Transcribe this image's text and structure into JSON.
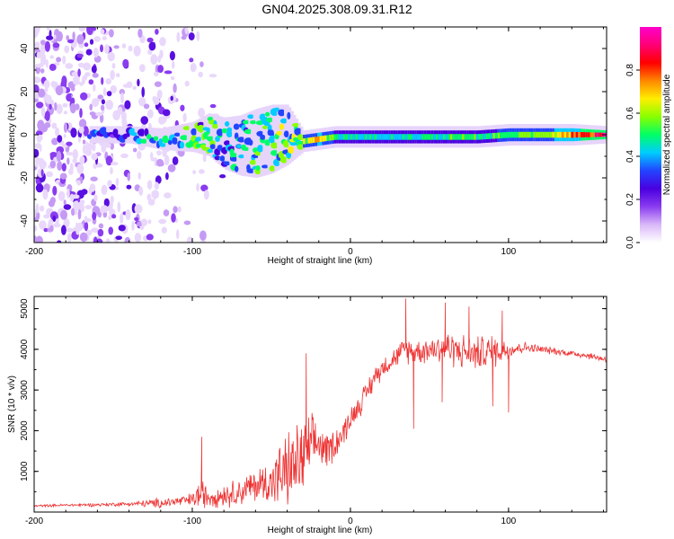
{
  "title": "GN04.2025.308.09.31.R12",
  "chart_data": [
    {
      "type": "heatmap",
      "name": "spectrogram",
      "xlabel": "Height of straight line (km)",
      "ylabel": "Frequency (Hz)",
      "xlim": [
        -200,
        162
      ],
      "ylim": [
        -50,
        50
      ],
      "xticks": [
        "-200",
        "-100",
        "0",
        "100"
      ],
      "xtick_values": [
        -200,
        -100,
        0,
        100
      ],
      "yticks": [
        "-40",
        "-20",
        "0",
        "20",
        "40"
      ],
      "ytick_values": [
        -40,
        -20,
        0,
        20,
        40
      ],
      "colorbar": {
        "label": "Normalized spectral amplitude",
        "range": [
          0,
          1
        ],
        "ticks": [
          "0.0",
          "0.2",
          "0.4",
          "0.6",
          "0.8"
        ],
        "tick_values": [
          0.0,
          0.2,
          0.4,
          0.6,
          0.8
        ],
        "colors": [
          "#ffffff",
          "#d9b8f8",
          "#8a3cf0",
          "#4a00e0",
          "#2244ff",
          "#00ccff",
          "#00ff66",
          "#88ff00",
          "#ffee00",
          "#ff8800",
          "#ff0000",
          "#ff0077",
          "#ff00cc"
        ]
      },
      "scatter_x_range": [
        -200,
        -105
      ],
      "band": {
        "x": [
          -160,
          -140,
          -120,
          -100,
          -90,
          -80,
          -70,
          -60,
          -50,
          -40,
          -30,
          -20,
          -10,
          0,
          20,
          40,
          60,
          80,
          100,
          120,
          140,
          162
        ],
        "center_hz": [
          0,
          0,
          -2,
          -1,
          0,
          -4,
          -5,
          -4,
          -2,
          0,
          -3,
          -2,
          -1,
          -1,
          -1,
          -1,
          -1,
          -1,
          0,
          0,
          0,
          0
        ],
        "half_width_hz": [
          2,
          2,
          3,
          5,
          8,
          10,
          12,
          14,
          14,
          12,
          3,
          3,
          3,
          3,
          3,
          3,
          3,
          3,
          3,
          3,
          3,
          2
        ],
        "amplitude": [
          0.3,
          0.35,
          0.45,
          0.5,
          0.45,
          0.4,
          0.42,
          0.45,
          0.5,
          0.5,
          0.6,
          0.7,
          0.5,
          0.45,
          0.45,
          0.45,
          0.5,
          0.5,
          0.55,
          0.6,
          0.8,
          0.95
        ]
      }
    },
    {
      "type": "line",
      "name": "snr",
      "xlabel": "Height of straight line (km)",
      "ylabel": "SNR (10 * v/v)",
      "xlim": [
        -200,
        162
      ],
      "ylim": [
        0,
        5300
      ],
      "xticks": [
        "-200",
        "-100",
        "0",
        "100"
      ],
      "xtick_values": [
        -200,
        -100,
        0,
        100
      ],
      "yticks": [
        "1000",
        "2000",
        "3000",
        "4000",
        "5000"
      ],
      "ytick_values": [
        1000,
        2000,
        3000,
        4000,
        5000
      ],
      "color": "#ee3333",
      "x": [
        -200,
        -180,
        -160,
        -140,
        -120,
        -110,
        -100,
        -95,
        -90,
        -80,
        -70,
        -60,
        -50,
        -40,
        -30,
        -25,
        -20,
        -15,
        -10,
        -5,
        0,
        5,
        10,
        15,
        20,
        25,
        30,
        35,
        40,
        50,
        60,
        70,
        80,
        90,
        100,
        110,
        120,
        130,
        140,
        150,
        162
      ],
      "y": [
        150,
        170,
        180,
        200,
        220,
        260,
        300,
        450,
        380,
        420,
        500,
        650,
        750,
        1000,
        1300,
        1600,
        1700,
        1500,
        1700,
        1900,
        2300,
        2600,
        2900,
        3300,
        3550,
        3700,
        3850,
        4000,
        3950,
        4000,
        4050,
        3950,
        3900,
        3950,
        4000,
        4050,
        4000,
        3950,
        3900,
        3850,
        3750
      ],
      "noise": [
        30,
        40,
        50,
        60,
        150,
        150,
        200,
        500,
        300,
        350,
        400,
        500,
        700,
        1100,
        1200,
        900,
        700,
        500,
        500,
        400,
        350,
        350,
        350,
        350,
        300,
        300,
        300,
        400,
        350,
        400,
        500,
        500,
        500,
        500,
        300,
        150,
        120,
        100,
        100,
        100,
        100
      ],
      "spikes": [
        {
          "x": -94,
          "y": 1850
        },
        {
          "x": -28,
          "y": 3900
        },
        {
          "x": 35,
          "y": 5250
        },
        {
          "x": 40,
          "y": 2050
        },
        {
          "x": 60,
          "y": 5150
        },
        {
          "x": 58,
          "y": 2700
        },
        {
          "x": 75,
          "y": 5050
        },
        {
          "x": 90,
          "y": 2600
        },
        {
          "x": 96,
          "y": 4950
        },
        {
          "x": 100,
          "y": 2450
        }
      ]
    }
  ]
}
